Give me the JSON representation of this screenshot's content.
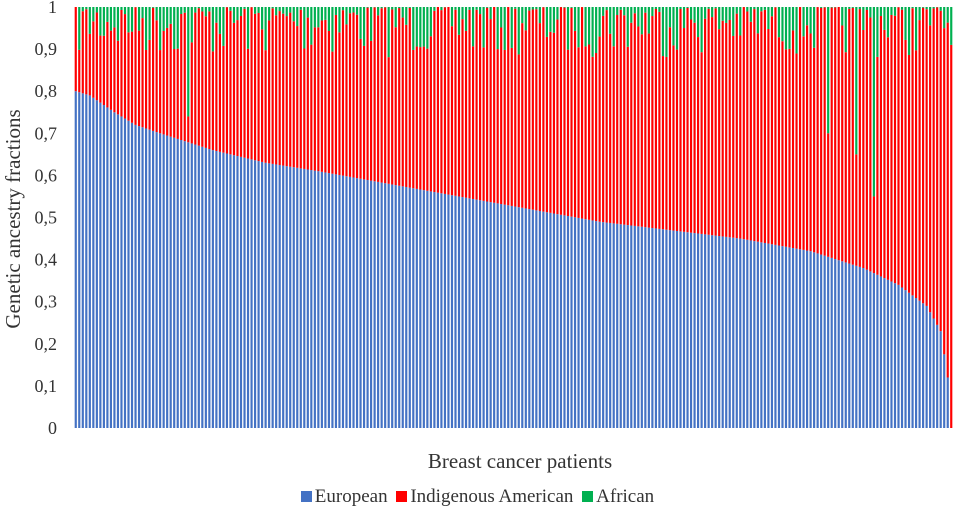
{
  "chart_data": {
    "type": "bar",
    "stacked": true,
    "xlabel": "Breast cancer patients",
    "ylabel": "Genetic ancestry fractions",
    "ylim": [
      0,
      1
    ],
    "y_ticks": [
      "0",
      "0,1",
      "0,2",
      "0,3",
      "0,4",
      "0,5",
      "0,6",
      "0,7",
      "0,8",
      "0,9",
      "1"
    ],
    "grid": false,
    "legend_position": "bottom",
    "n_patients": 250,
    "european_profile": [
      {
        "patient": 1,
        "value": 0.8
      },
      {
        "patient": 5,
        "value": 0.79
      },
      {
        "patient": 12,
        "value": 0.75
      },
      {
        "patient": 18,
        "value": 0.72
      },
      {
        "patient": 25,
        "value": 0.7
      },
      {
        "patient": 40,
        "value": 0.66
      },
      {
        "patient": 55,
        "value": 0.63
      },
      {
        "patient": 70,
        "value": 0.61
      },
      {
        "patient": 90,
        "value": 0.58
      },
      {
        "patient": 110,
        "value": 0.55
      },
      {
        "patient": 130,
        "value": 0.52
      },
      {
        "patient": 150,
        "value": 0.49
      },
      {
        "patient": 170,
        "value": 0.47
      },
      {
        "patient": 190,
        "value": 0.45
      },
      {
        "patient": 210,
        "value": 0.42
      },
      {
        "patient": 225,
        "value": 0.38
      },
      {
        "patient": 235,
        "value": 0.34
      },
      {
        "patient": 243,
        "value": 0.29
      },
      {
        "patient": 247,
        "value": 0.23
      },
      {
        "patient": 249,
        "value": 0.12
      },
      {
        "patient": 250,
        "value": 0.0
      }
    ],
    "african_typical_range": [
      0.0,
      0.12
    ],
    "notable_african_values": [
      {
        "patient": 33,
        "value": 0.26
      },
      {
        "patient": 215,
        "value": 0.3
      },
      {
        "patient": 223,
        "value": 0.35
      },
      {
        "patient": 228,
        "value": 0.45
      }
    ],
    "series": [
      {
        "name": "European",
        "color": "#4472c4"
      },
      {
        "name": "Indigenous American",
        "color": "#ff0000"
      },
      {
        "name": "African",
        "color": "#00b050"
      }
    ]
  }
}
